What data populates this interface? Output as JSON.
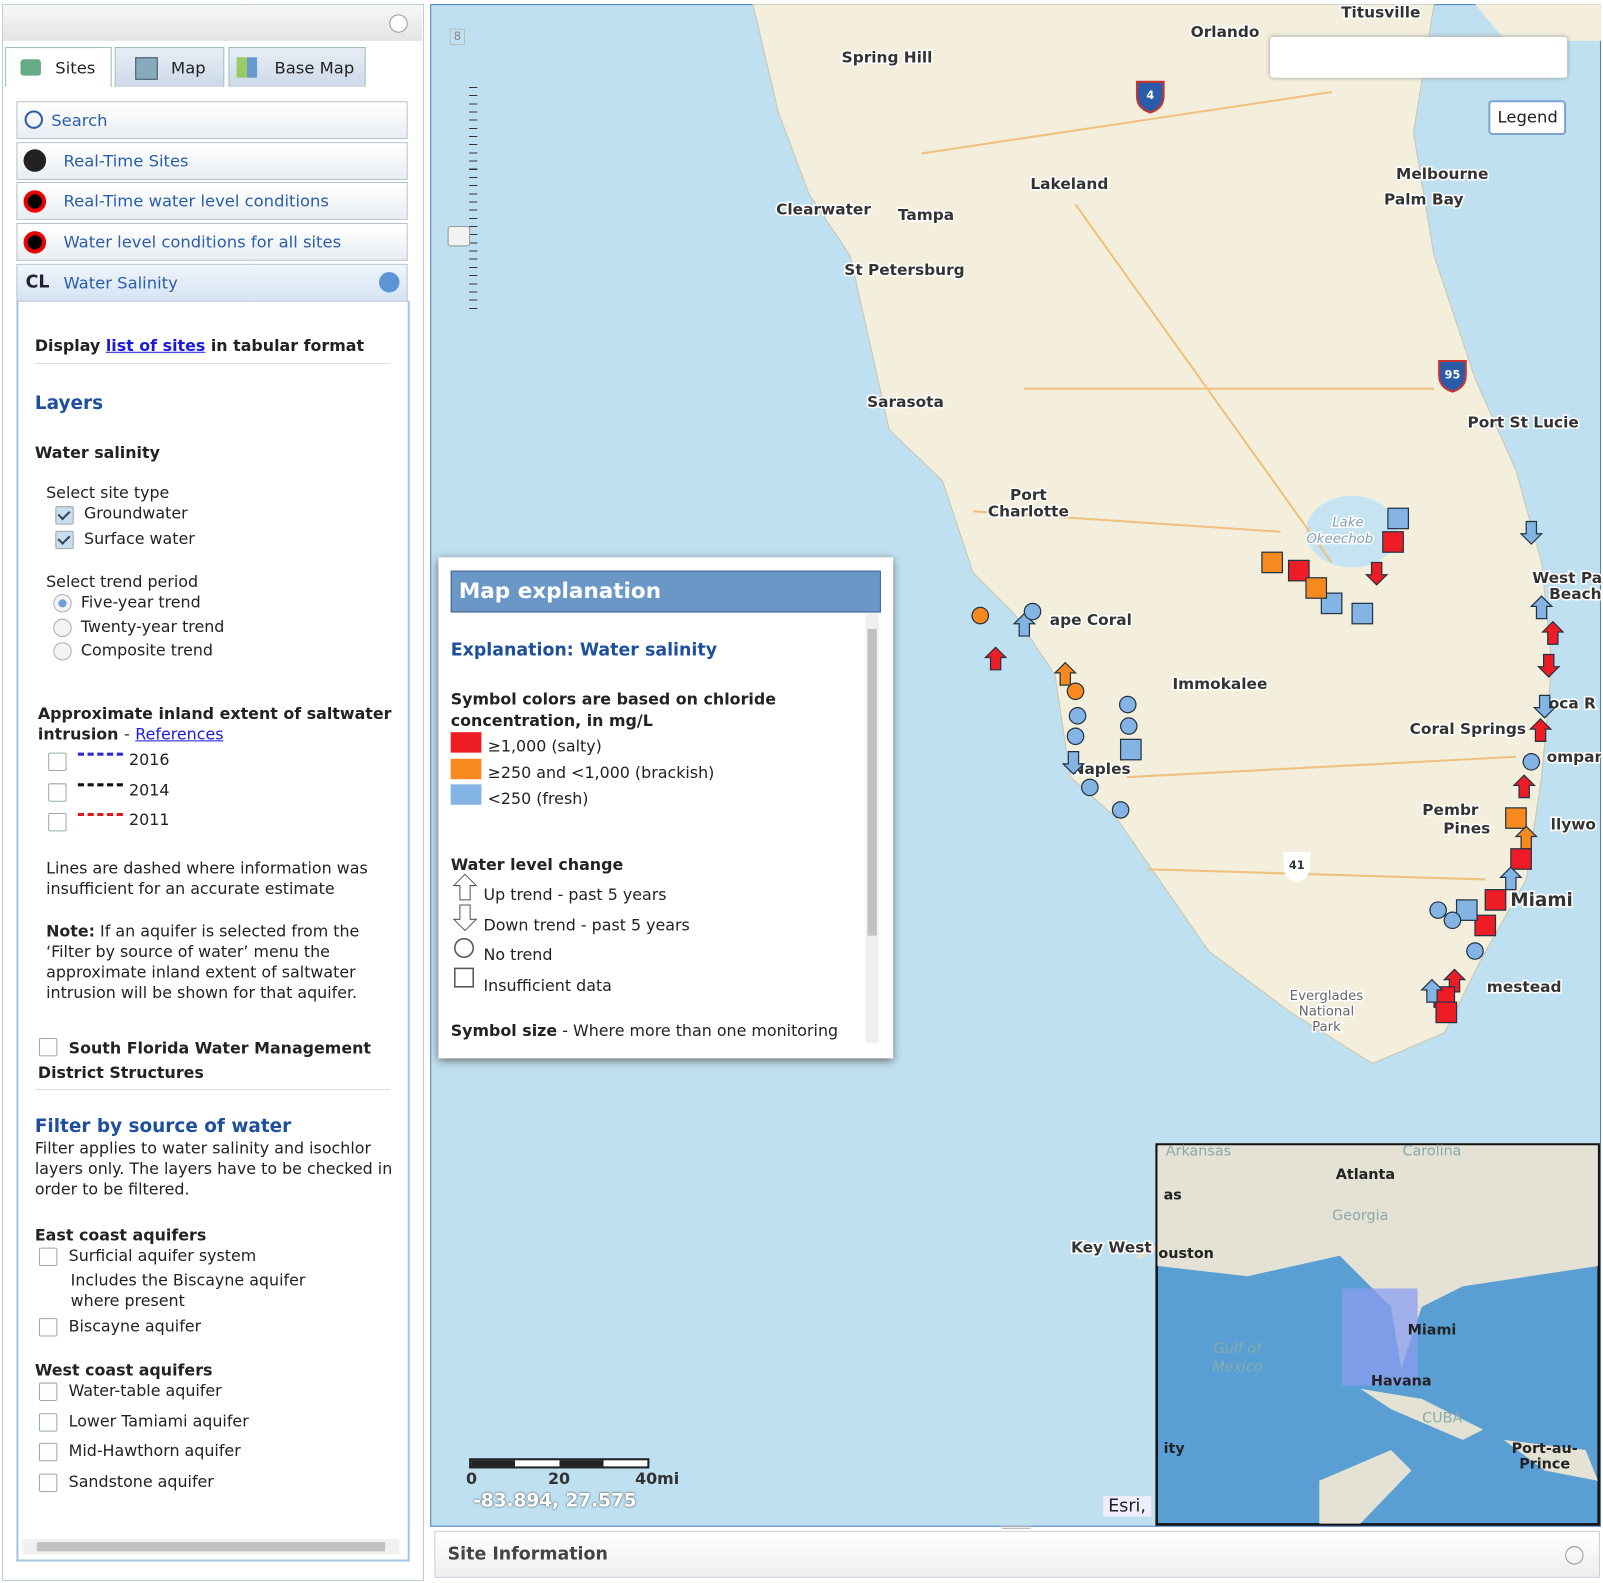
{
  "sidebar": {
    "tabs": [
      "Sites",
      "Map",
      "Base Map"
    ],
    "accordion": [
      "Search",
      "Real-Time Sites",
      "Real-Time water level conditions",
      "Water level conditions for all sites",
      "Water Salinity"
    ],
    "badge": "CL",
    "display": {
      "prefix": "Display",
      "link": "list of sites",
      "suffix": "in tabular format"
    },
    "layers_heading": "Layers",
    "water_salinity": "Water salinity",
    "site_type_label": "Select site type",
    "site_types": [
      "Groundwater",
      "Surface water"
    ],
    "trend_label": "Select trend period",
    "trends": [
      "Five-year trend",
      "Twenty-year trend",
      "Composite trend"
    ],
    "extent_heading": "Approximate inland extent of saltwater intrusion",
    "extent_sep": "-",
    "references": "References",
    "years": [
      {
        "label": "2016",
        "color": "#2b2bd6"
      },
      {
        "label": "2014",
        "color": "#111111"
      },
      {
        "label": "2011",
        "color": "#e0141e"
      }
    ],
    "dashed_note": "Lines are dashed where information was insufficient for an accurate estimate",
    "note_label": "Note:",
    "note_text": "If an aquifer is selected from the ‘Filter by source of water’ menu the approximate inland extent of saltwater intrusion will be shown for that aquifer.",
    "sfwmd": "South Florida Water Management District Structures",
    "filter_heading": "Filter by source of water",
    "filter_text": "Filter applies to water salinity and isochlor layers only. The layers have to be checked in order to be filtered.",
    "east_heading": "East coast aquifers",
    "east_items": [
      "Surficial aquifer system",
      "Biscayne aquifer"
    ],
    "east_sub": "Includes the Biscayne aquifer where present",
    "west_heading": "West coast aquifers",
    "west_items": [
      "Water-table aquifer",
      "Lower Tamiami aquifer",
      "Mid-Hawthorn aquifer",
      "Sandstone aquifer"
    ]
  },
  "map": {
    "zoom_level": "8",
    "legend_button": "Legend",
    "labels": [
      "Titusville",
      "Orlando",
      "Spring Hill",
      "Lakeland",
      "Clearwater",
      "Tampa",
      "St Petersburg",
      "Melbourne",
      "Palm Bay",
      "Sarasota",
      "Port St Lucie",
      "Port",
      "Charlotte",
      "Lake",
      "Okeechob",
      "ape Coral",
      "West Pa",
      "Beach",
      "Immokalee",
      "oca R",
      "Coral Springs",
      "ompar",
      "Naples",
      "Pembr",
      "Pines",
      "llywo",
      "Miami",
      "mestead",
      "Everglades",
      "National",
      "Park",
      "Key West"
    ],
    "shields": [
      "4",
      "95",
      "41"
    ],
    "scale": [
      "0",
      "20",
      "40mi"
    ],
    "coords": "-83.894, 27.575",
    "attribution": "Esri,",
    "inset_labels": [
      "Arkansas",
      "Carolina",
      "Atlanta",
      "as",
      "Georgia",
      "ouston",
      "Gulf of",
      "Mexico",
      "Miami",
      "Havana",
      "CUBA",
      "ity",
      "Port-au-",
      "Prince"
    ]
  },
  "explanation": {
    "title": "Map explanation",
    "heading": "Explanation: Water salinity",
    "color_heading": "Symbol colors are based on chloride concentration, in mg/L",
    "classes": [
      {
        "label": "≥1,000 (salty)",
        "color": "#ee1c25"
      },
      {
        "label": "≥250 and <1,000 (brackish)",
        "color": "#f7891f"
      },
      {
        "label": "<250 (fresh)",
        "color": "#84b4e4"
      }
    ],
    "water_heading": "Water level change",
    "trend_items": [
      "Up trend - past 5 years",
      "Down trend - past 5 years",
      "No trend",
      "Insufficient data"
    ],
    "size_label": "Symbol size",
    "size_text": "- Where more than one monitoring"
  },
  "site_info": "Site Information"
}
